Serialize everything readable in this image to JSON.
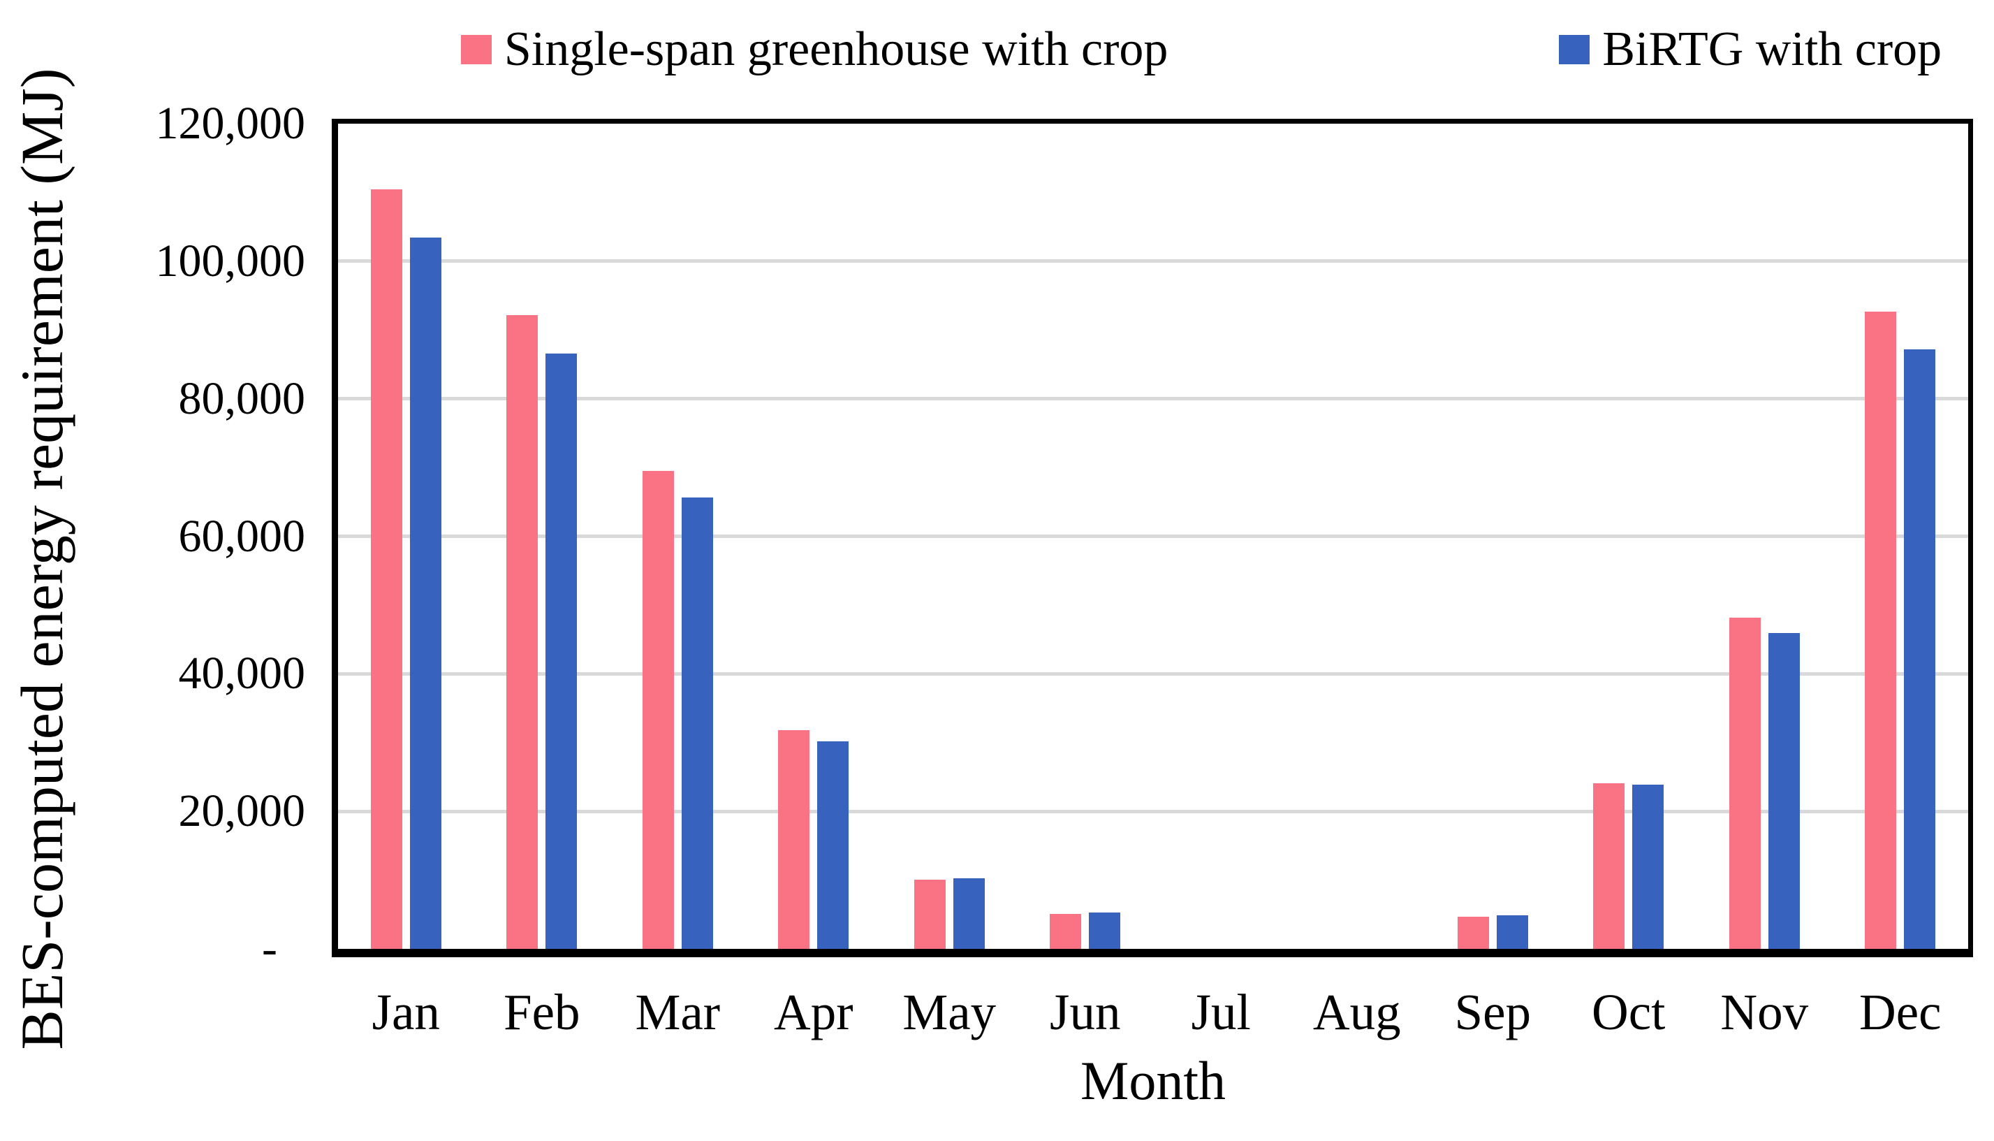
{
  "chart_data": {
    "type": "bar",
    "title": "",
    "xlabel": "Month",
    "ylabel": "BES-computed energy requirement (MJ)",
    "ylim": [
      0,
      120000
    ],
    "grid": true,
    "gridline_color": "#D9D9D9",
    "axis_color": "#000000",
    "background_color": "#FFFFFF",
    "legend_position": "top",
    "ytick_values": [
      120000,
      100000,
      80000,
      60000,
      40000,
      20000,
      0
    ],
    "ytick_labels": [
      "120,000",
      "100,000",
      "80,000",
      "60,000",
      "40,000",
      "20,000",
      "-"
    ],
    "categories": [
      "Jan",
      "Feb",
      "Mar",
      "Apr",
      "May",
      "Jun",
      "Jul",
      "Aug",
      "Sep",
      "Oct",
      "Nov",
      "Dec"
    ],
    "series": [
      {
        "name": "Single-span greenhouse with crop",
        "color": "#F97384",
        "values": [
          110400,
          92200,
          69500,
          31800,
          10100,
          5100,
          0,
          0,
          4700,
          24100,
          48200,
          92700
        ]
      },
      {
        "name": "BiRTG with crop",
        "color": "#3763BE",
        "values": [
          103400,
          86600,
          65600,
          30200,
          10300,
          5300,
          0,
          0,
          4900,
          23900,
          45900,
          87200
        ]
      }
    ]
  },
  "legend": {
    "items": [
      {
        "label": "Single-span greenhouse with crop",
        "swatch_color": "#F97384"
      },
      {
        "label": "BiRTG with crop",
        "swatch_color": "#3763BE"
      }
    ]
  }
}
